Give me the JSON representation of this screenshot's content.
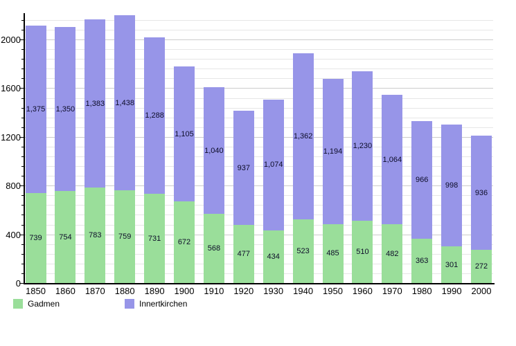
{
  "chart_data": {
    "type": "bar",
    "stacked": true,
    "title": "",
    "xlabel": "",
    "ylabel": "",
    "categories": [
      "1850",
      "1860",
      "1870",
      "1880",
      "1890",
      "1900",
      "1910",
      "1920",
      "1930",
      "1940",
      "1950",
      "1960",
      "1970",
      "1980",
      "1990",
      "2000"
    ],
    "series": [
      {
        "name": "Gadmen",
        "color": "#9ade9a",
        "values": [
          739,
          754,
          783,
          759,
          731,
          672,
          568,
          477,
          434,
          523,
          485,
          510,
          482,
          363,
          301,
          272
        ]
      },
      {
        "name": "Innertkirchen",
        "color": "#9795e8",
        "values": [
          1375,
          1350,
          1383,
          1438,
          1288,
          1105,
          1040,
          937,
          1074,
          1362,
          1194,
          1230,
          1064,
          966,
          998,
          936
        ]
      }
    ],
    "ylim": [
      0,
      2216
    ],
    "yticks": [
      0,
      400,
      800,
      1200,
      1600,
      2000
    ],
    "minor_tick_step": 80,
    "grid": true,
    "bar_value_labels": true,
    "legend_position": "bottom-left",
    "axis_color": "#000000",
    "background_color": "#ffffff"
  }
}
